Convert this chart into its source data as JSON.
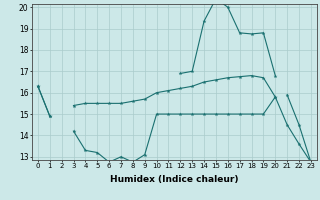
{
  "xlabel": "Humidex (Indice chaleur)",
  "x": [
    0,
    1,
    2,
    3,
    4,
    5,
    6,
    7,
    8,
    9,
    10,
    11,
    12,
    13,
    14,
    15,
    16,
    17,
    18,
    19,
    20,
    21,
    22,
    23
  ],
  "line1": [
    16.3,
    14.9,
    null,
    15.4,
    15.5,
    15.5,
    15.5,
    15.5,
    15.6,
    15.7,
    16.0,
    16.1,
    16.2,
    16.3,
    16.5,
    16.6,
    16.7,
    16.75,
    16.8,
    16.7,
    15.8,
    null,
    null,
    null
  ],
  "line2": [
    16.3,
    14.9,
    null,
    14.2,
    13.3,
    13.2,
    12.75,
    13.0,
    12.75,
    13.1,
    15.0,
    15.0,
    15.0,
    15.0,
    15.0,
    15.0,
    15.0,
    15.0,
    15.0,
    15.0,
    15.8,
    14.5,
    13.6,
    12.75
  ],
  "line3": [
    null,
    null,
    null,
    null,
    null,
    null,
    null,
    null,
    null,
    null,
    null,
    null,
    16.9,
    17.0,
    19.35,
    20.4,
    20.0,
    18.8,
    18.75,
    18.8,
    16.8,
    null,
    null,
    null
  ],
  "line4": [
    null,
    null,
    null,
    null,
    null,
    null,
    null,
    null,
    null,
    null,
    null,
    null,
    null,
    null,
    null,
    null,
    null,
    null,
    null,
    null,
    null,
    15.9,
    14.5,
    12.75
  ],
  "ylim": [
    13,
    20
  ],
  "yticks": [
    13,
    14,
    15,
    16,
    17,
    18,
    19,
    20
  ],
  "xlim_min": -0.5,
  "xlim_max": 23.5,
  "bg_color": "#cce8e8",
  "line_color": "#1a7070",
  "grid_color": "#aacccc"
}
